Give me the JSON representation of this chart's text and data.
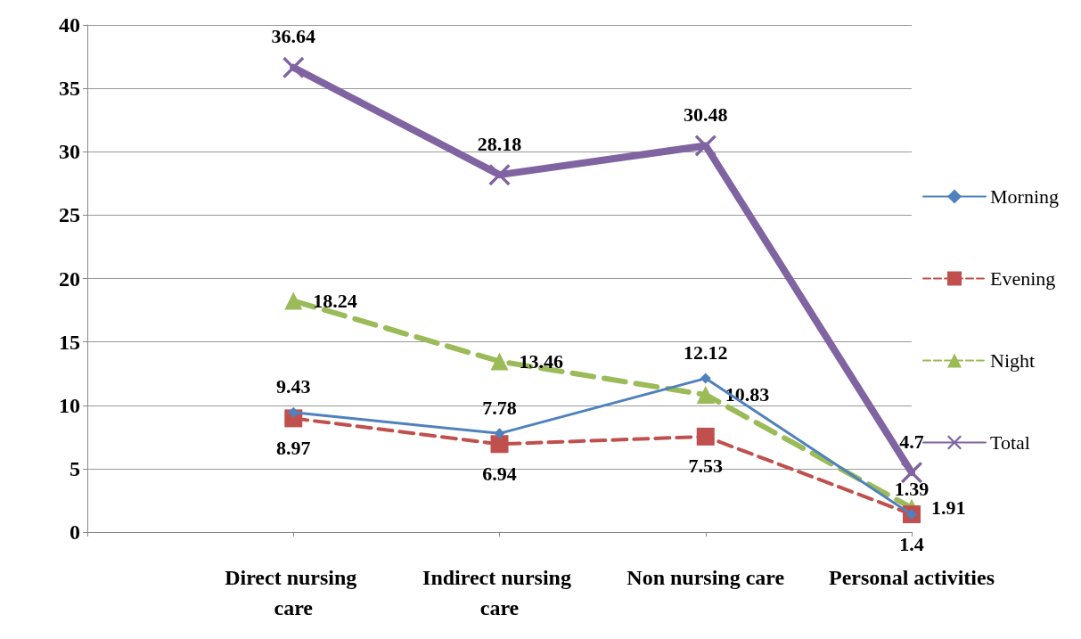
{
  "chart_data": {
    "type": "line",
    "categories": [
      null,
      "Direct nursing care",
      "Indirect nursing care",
      "Non nursing care",
      "Personal activities"
    ],
    "series": [
      {
        "name": "Morning",
        "color": "#4f81bd",
        "marker": "diamond",
        "line_style": "solid",
        "values": [
          null,
          9.43,
          7.78,
          12.12,
          1.39
        ]
      },
      {
        "name": "Evening",
        "color": "#c0504d",
        "marker": "square",
        "line_style": "dashed",
        "values": [
          null,
          8.97,
          6.94,
          7.53,
          1.4
        ]
      },
      {
        "name": "Night",
        "color": "#9bbb59",
        "marker": "triangle",
        "line_style": "dashed",
        "values": [
          null,
          18.24,
          13.46,
          10.83,
          1.91
        ]
      },
      {
        "name": "Total",
        "color": "#8064a2",
        "marker": "cross",
        "line_style": "solid",
        "values": [
          null,
          36.64,
          28.18,
          30.48,
          4.7
        ]
      }
    ],
    "ylim": [
      0,
      40
    ],
    "yticks": [
      0,
      5,
      10,
      15,
      20,
      25,
      30,
      35,
      40
    ],
    "grid": "y",
    "legend": "right",
    "data_labels": true
  }
}
